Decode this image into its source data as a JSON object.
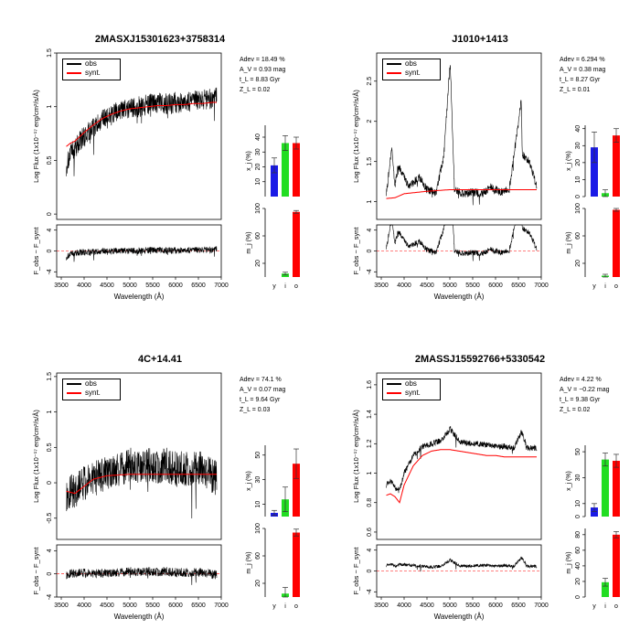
{
  "colors": {
    "obs": "#000000",
    "synt": "#ff0000",
    "y": "#1a1ae6",
    "i": "#22dd22",
    "o": "#ff0000"
  },
  "chart_data": [
    {
      "type": "line",
      "title": "2MASXJ15301623+3758314",
      "xlabel": "Wavelength (Å)",
      "ylabel": "Log Flux (1x10⁻¹⁷ erg/cm²/s/Å)",
      "resid_ylabel": "F_obs − F_synt",
      "legend": [
        "obs",
        "synt."
      ],
      "stats": [
        "Adev = 18.49 %",
        "A_V = 0.93 mag",
        "t_L = 8.83 Gyr",
        "Z_L = 0.02"
      ],
      "xlim": [
        3400,
        7000
      ],
      "xticks": [
        "3500",
        "4000",
        "4500",
        "5000",
        "5500",
        "6000",
        "6500",
        "7000"
      ],
      "ylim": [
        -0.05,
        1.5
      ],
      "yticks": [
        "0",
        "0.5",
        "1",
        "1.5"
      ],
      "resid_ylim": [
        -5,
        5
      ],
      "resid_yticks": [
        "-4",
        "0",
        "4"
      ],
      "obs_x": [
        3610,
        3700,
        3800,
        3900,
        4000,
        4200,
        4400,
        4600,
        4800,
        5000,
        5200,
        5400,
        5600,
        5800,
        6000,
        6200,
        6400,
        6600,
        6800,
        6900
      ],
      "obs_y": [
        0.45,
        0.55,
        0.62,
        0.68,
        0.72,
        0.8,
        0.87,
        0.92,
        0.96,
        0.98,
        1.0,
        1.02,
        1.03,
        1.03,
        1.04,
        1.04,
        1.05,
        1.07,
        1.08,
        1.08
      ],
      "synt_x": [
        3610,
        3700,
        3800,
        3900,
        4000,
        4200,
        4400,
        4600,
        4800,
        5000,
        5200,
        5400,
        5600,
        5800,
        6000,
        6200,
        6400,
        6600,
        6800,
        6900
      ],
      "synt_y": [
        0.63,
        0.66,
        0.68,
        0.72,
        0.76,
        0.83,
        0.89,
        0.93,
        0.96,
        0.98,
        0.99,
        1.0,
        1.01,
        1.01,
        1.02,
        1.02,
        1.03,
        1.03,
        1.04,
        1.04
      ],
      "noise": 0.1,
      "bar_categories": [
        "y",
        "i",
        "o"
      ],
      "x_percent": [
        21,
        36,
        36
      ],
      "x_err": [
        5,
        5,
        4
      ],
      "x_ylim": [
        0,
        48
      ],
      "x_ticks": [
        "10",
        "20",
        "30",
        "40"
      ],
      "x_label": "x_j (%)",
      "m_percent": [
        0,
        5,
        95
      ],
      "m_err": [
        0,
        2,
        2
      ],
      "m_ylim": [
        0,
        100
      ],
      "m_ticks": [
        "20",
        "60",
        "100"
      ],
      "m_label": "m_j (%)"
    },
    {
      "type": "line",
      "title": "J1010+1413",
      "xlabel": "Wavelength (Å)",
      "ylabel": "Log Flux (1x10⁻¹⁷ erg/cm²/s/Å)",
      "resid_ylabel": "F_obs − F_synt",
      "legend": [
        "obs",
        "synt."
      ],
      "stats": [
        "Adev = 6.294 %",
        "A_V = 0.38 mag",
        "t_L = 8.27 Gyr",
        "Z_L = 0.01"
      ],
      "xlim": [
        3400,
        7000
      ],
      "xticks": [
        "3500",
        "4000",
        "4500",
        "5000",
        "5500",
        "6000",
        "6500",
        "7000"
      ],
      "ylim": [
        0.78,
        2.85
      ],
      "yticks": [
        "1",
        "1.5",
        "2",
        "2.5"
      ],
      "resid_ylim": [
        -5,
        5
      ],
      "resid_yticks": [
        "-4",
        "0",
        "4"
      ],
      "obs_x": [
        3610,
        3728,
        3800,
        3870,
        4100,
        4340,
        4500,
        4700,
        4861,
        4959,
        5007,
        5100,
        5300,
        5500,
        5700,
        5900,
        6100,
        6300,
        6563,
        6583,
        6731,
        6900
      ],
      "obs_y": [
        1.12,
        1.65,
        1.2,
        1.45,
        1.2,
        1.3,
        1.15,
        1.12,
        1.55,
        2.35,
        2.75,
        1.15,
        1.1,
        1.12,
        1.1,
        1.18,
        1.12,
        1.15,
        2.25,
        1.6,
        1.5,
        1.2
      ],
      "synt_x": [
        3610,
        3800,
        4000,
        4500,
        5000,
        5500,
        6000,
        6500,
        6900
      ],
      "synt_y": [
        1.04,
        1.05,
        1.1,
        1.13,
        1.15,
        1.15,
        1.15,
        1.15,
        1.15
      ],
      "noise": 0.05,
      "bar_categories": [
        "y",
        "i",
        "o"
      ],
      "x_percent": [
        29,
        2,
        36
      ],
      "x_err": [
        9,
        2,
        4
      ],
      "x_ylim": [
        0,
        42
      ],
      "x_ticks": [
        "0",
        "10",
        "20",
        "30",
        "40"
      ],
      "x_label": "x_j (%)",
      "m_percent": [
        0,
        2,
        98
      ],
      "m_err": [
        0,
        2,
        2
      ],
      "m_ylim": [
        0,
        100
      ],
      "m_ticks": [
        "20",
        "60",
        "100"
      ],
      "m_label": "m_j (%)"
    },
    {
      "type": "line",
      "title": "4C+14.41",
      "xlabel": "Wavelength (Å)",
      "ylabel": "Log Flux (1x10⁻¹⁷ erg/cm²/s/Å)",
      "resid_ylabel": "F_obs − F_synt",
      "legend": [
        "obs",
        "synt."
      ],
      "stats": [
        "Adev = 74.1 %",
        "A_V = 0.07 mag",
        "t_L = 9.64 Gyr",
        "Z_L = 0.03"
      ],
      "xlim": [
        3400,
        7000
      ],
      "xticks": [
        "3500",
        "4000",
        "4500",
        "5000",
        "5500",
        "6000",
        "6500",
        "7000"
      ],
      "ylim": [
        -0.8,
        1.55
      ],
      "yticks": [
        "-0.5",
        "0",
        "0.5",
        "1",
        "1.5"
      ],
      "resid_ylim": [
        -4,
        5
      ],
      "resid_yticks": [
        "-4",
        "0",
        "4"
      ],
      "obs_x": [
        3610,
        3800,
        4000,
        4200,
        4400,
        4600,
        4800,
        5000,
        5200,
        5400,
        5600,
        5800,
        6000,
        6200,
        6400,
        6600,
        6800,
        6900
      ],
      "obs_y": [
        -0.15,
        -0.1,
        0.0,
        0.05,
        0.1,
        0.15,
        0.2,
        0.25,
        0.2,
        0.25,
        0.22,
        0.25,
        0.2,
        0.2,
        0.22,
        0.2,
        0.1,
        0.05
      ],
      "synt_x": [
        3610,
        3800,
        4000,
        4200,
        4500,
        5000,
        5500,
        6000,
        6500,
        6900
      ],
      "synt_y": [
        -0.12,
        -0.15,
        -0.05,
        0.05,
        0.1,
        0.12,
        0.12,
        0.12,
        0.12,
        0.12
      ],
      "noise": 0.25,
      "bar_categories": [
        "y",
        "i",
        "o"
      ],
      "x_percent": [
        3,
        14,
        43
      ],
      "x_err": [
        2,
        10,
        12
      ],
      "x_ylim": [
        0,
        58
      ],
      "x_ticks": [
        "10",
        "30",
        "50"
      ],
      "x_label": "x_j (%)",
      "m_percent": [
        0,
        5,
        94
      ],
      "m_err": [
        0,
        9,
        5
      ],
      "m_ylim": [
        0,
        100
      ],
      "m_ticks": [
        "20",
        "60",
        "100"
      ],
      "m_label": "m_j (%)"
    },
    {
      "type": "line",
      "title": "2MASSJ15592766+5330542",
      "xlabel": "Wavelength (Å)",
      "ylabel": "Log Flux (1x10⁻¹⁷ erg/cm²/s/Å)",
      "resid_ylabel": "F_obs − F_synt",
      "legend": [
        "obs",
        "synt."
      ],
      "stats": [
        "Adev = 4.22 %",
        "A_V = −0.22 mag",
        "t_L = 9.38 Gyr",
        "Z_L = 0.02"
      ],
      "xlim": [
        3400,
        7000
      ],
      "xticks": [
        "3500",
        "4000",
        "4500",
        "5000",
        "5500",
        "6000",
        "6500",
        "7000"
      ],
      "ylim": [
        0.55,
        1.68
      ],
      "yticks": [
        "0.6",
        "0.8",
        "1",
        "1.2",
        "1.4",
        "1.6"
      ],
      "resid_ylim": [
        -5,
        5
      ],
      "resid_yticks": [
        "-4",
        "0",
        "4"
      ],
      "obs_x": [
        3610,
        3700,
        3800,
        3900,
        4000,
        4200,
        4400,
        4600,
        4800,
        5007,
        5200,
        5400,
        5600,
        5800,
        6000,
        6200,
        6400,
        6563,
        6700,
        6900
      ],
      "obs_y": [
        0.92,
        0.95,
        0.9,
        0.88,
        1.0,
        1.12,
        1.18,
        1.2,
        1.22,
        1.3,
        1.22,
        1.2,
        1.2,
        1.19,
        1.18,
        1.18,
        1.17,
        1.28,
        1.17,
        1.17
      ],
      "synt_x": [
        3610,
        3700,
        3800,
        3900,
        4000,
        4200,
        4400,
        4600,
        4800,
        5000,
        5200,
        5400,
        5600,
        5800,
        6000,
        6200,
        6400,
        6600,
        6900
      ],
      "synt_y": [
        0.85,
        0.86,
        0.84,
        0.8,
        0.92,
        1.05,
        1.12,
        1.15,
        1.16,
        1.16,
        1.15,
        1.14,
        1.13,
        1.12,
        1.12,
        1.11,
        1.11,
        1.11,
        1.11
      ],
      "noise": 0.02,
      "bar_categories": [
        "y",
        "i",
        "o"
      ],
      "x_percent": [
        7,
        44,
        43
      ],
      "x_err": [
        3,
        5,
        5
      ],
      "x_ylim": [
        0,
        55
      ],
      "x_ticks": [
        "0",
        "10",
        "30",
        "50"
      ],
      "x_label": "x_j (%)",
      "m_percent": [
        0,
        19,
        80
      ],
      "m_err": [
        0,
        5,
        4
      ],
      "m_ylim": [
        0,
        88
      ],
      "m_ticks": [
        "0",
        "20",
        "40",
        "60",
        "80"
      ],
      "m_label": "m_j (%)"
    }
  ]
}
